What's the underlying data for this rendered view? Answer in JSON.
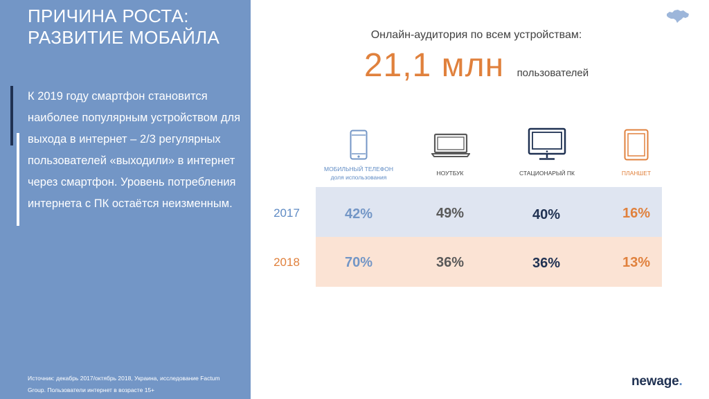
{
  "left_panel": {
    "title_line1": "ПРИЧИНА РОСТА:",
    "title_line2": "РАЗВИТИЕ МОБАЙЛА",
    "body": "К 2019 году смартфон становится наиболее популярным устройством для выхода в интернет – 2/3 регулярных пользователей «выходили» в интернет через смартфон. Уровень потребления интернета с ПК остаётся неизменным.",
    "source": "Источник: декабрь 2017/октябрь 2018, Украина, исследование Factum Group. Пользователи интернет в возрасте 15+",
    "background_color": "#7396c6"
  },
  "audience": {
    "label": "Онлайн-аудитория по всем устройствам:",
    "value": "21,1 млн",
    "unit": "пользователей"
  },
  "devices": [
    {
      "icon": "smartphone-icon",
      "label_line1": "МОБИЛЬНЫЙ ТЕЛЕФОН",
      "label_line2": "доля использования",
      "color": "#5f8bc4"
    },
    {
      "icon": "laptop-icon",
      "label_line1": "НОУТБУК",
      "color": "#404040"
    },
    {
      "icon": "desktop-monitor-icon",
      "label_line1": "СТАЦИОНАРЫЙ ПК",
      "color": "#1f3152"
    },
    {
      "icon": "tablet-icon",
      "label_line1": "ПЛАНШЕТ",
      "color": "#e0813d"
    }
  ],
  "table": {
    "rows": [
      {
        "year": "2017",
        "values": [
          "42%",
          "49%",
          "40%",
          "16%"
        ],
        "background": "#dfe5f1"
      },
      {
        "year": "2018",
        "values": [
          "70%",
          "36%",
          "36%",
          "13%"
        ],
        "background": "#fbe3d4"
      }
    ]
  },
  "branding": {
    "logo_text": "newage",
    "logo_dot": ".",
    "map_icon": "ukraine-map-icon"
  }
}
